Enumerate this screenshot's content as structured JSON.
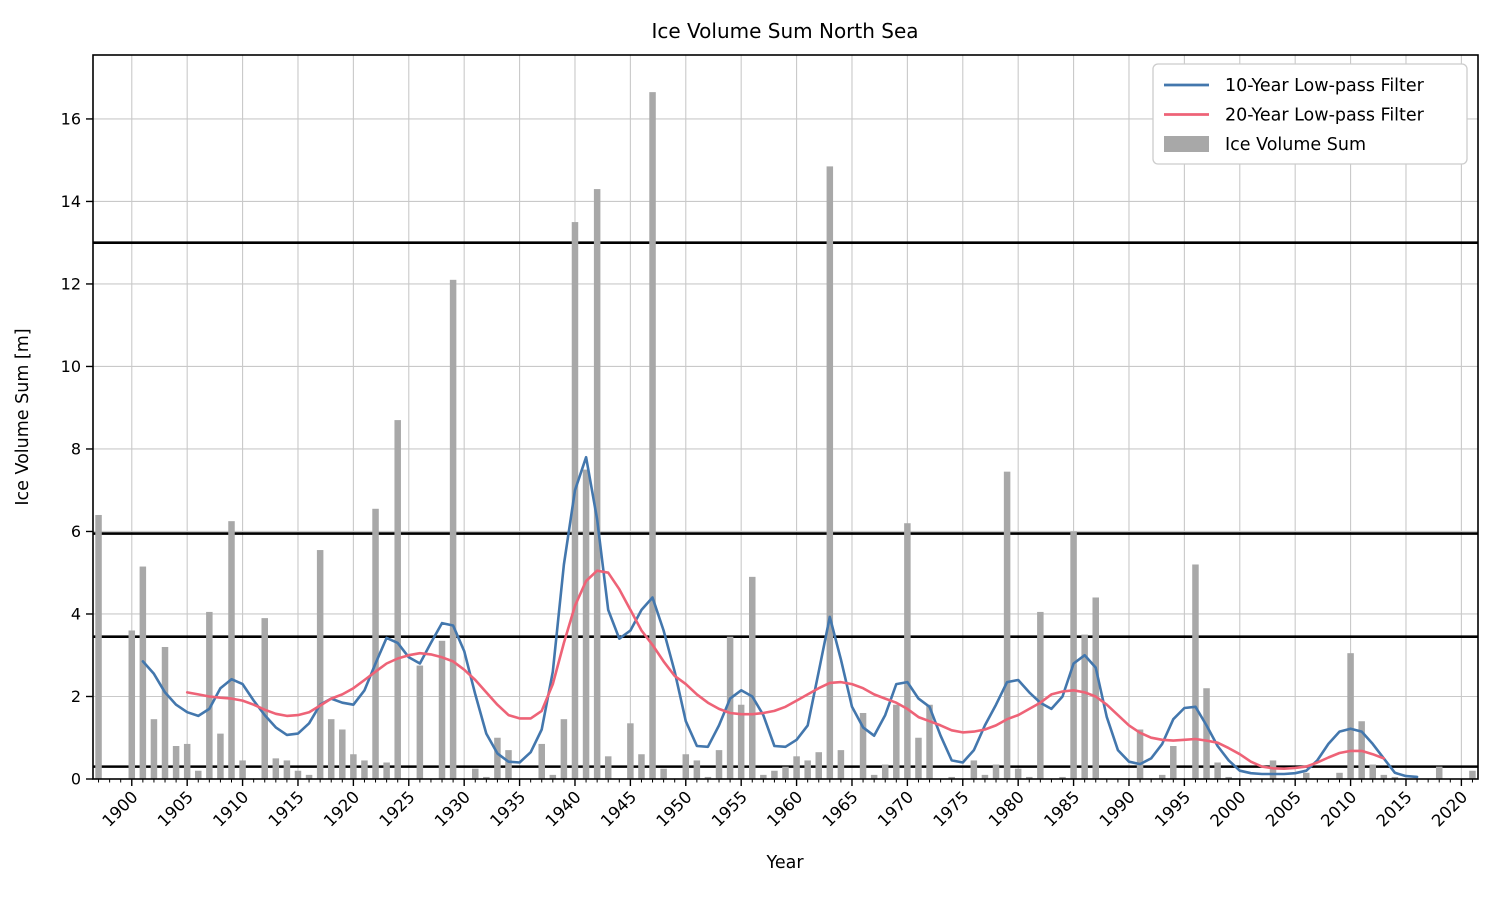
{
  "figure": {
    "title": "Ice Volume Sum North Sea",
    "xlabel": "Year",
    "ylabel": "Ice Volume Sum [m]"
  },
  "legend": {
    "position": "upper-right",
    "items": [
      {
        "label": "10-Year Low-pass Filter",
        "type": "line",
        "color": "#4377ad"
      },
      {
        "label": "20-Year Low-pass Filter",
        "type": "line",
        "color": "#ee6377"
      },
      {
        "label": "Ice Volume Sum",
        "type": "patch",
        "color": "#a8a8a8"
      }
    ]
  },
  "colors": {
    "bars": "#a8a8a8",
    "line_10yr": "#4377ad",
    "line_20yr": "#ee6377",
    "grid": "#c9c9c9",
    "threshold": "#000000",
    "spine": "#000000",
    "background": "#ffffff"
  },
  "chart_data": {
    "type": "bar",
    "title": "Ice Volume Sum North Sea",
    "xlabel": "Year",
    "ylabel": "Ice Volume Sum [m]",
    "xlim": [
      1896.5,
      2021.5
    ],
    "ylim": [
      0,
      17.55
    ],
    "xticks": [
      1900,
      1905,
      1910,
      1915,
      1920,
      1925,
      1930,
      1935,
      1940,
      1945,
      1950,
      1955,
      1960,
      1965,
      1970,
      1975,
      1980,
      1985,
      1990,
      1995,
      2000,
      2005,
      2010,
      2015,
      2020
    ],
    "yticks": [
      0,
      2,
      4,
      6,
      8,
      10,
      12,
      14,
      16
    ],
    "grid": true,
    "xtick_rotation": 45,
    "threshold_lines": [
      0.3,
      3.45,
      5.95,
      13.0
    ],
    "bars": {
      "name": "Ice Volume Sum",
      "start_year": 1897,
      "values": [
        6.4,
        0,
        0,
        3.6,
        5.15,
        1.45,
        3.2,
        0.8,
        0.85,
        0.2,
        4.05,
        1.1,
        6.25,
        0.45,
        0,
        3.9,
        0.5,
        0.45,
        0.2,
        0.1,
        5.55,
        1.45,
        1.2,
        0.6,
        0.45,
        6.55,
        0.4,
        8.7,
        0,
        2.75,
        0,
        3.35,
        12.1,
        0,
        0.25,
        0.05,
        1.0,
        0.7,
        0,
        0,
        0.85,
        0.1,
        1.45,
        13.5,
        7.5,
        14.3,
        0.55,
        0,
        1.35,
        0.6,
        16.65,
        0.25,
        0,
        0.6,
        0.45,
        0.05,
        0.7,
        3.45,
        1.8,
        4.9,
        0.1,
        0.2,
        0.3,
        0.55,
        0.45,
        0.65,
        14.85,
        0.7,
        0,
        1.6,
        0.1,
        0.35,
        1.8,
        6.2,
        1.0,
        1.8,
        0,
        0.05,
        0,
        0.45,
        0.1,
        0.35,
        7.45,
        0.25,
        0.05,
        4.05,
        0,
        0.05,
        6.0,
        3.5,
        4.4,
        0,
        0,
        0,
        1.2,
        0,
        0.1,
        0.8,
        0,
        5.2,
        2.2,
        0.4,
        0.05,
        0,
        0,
        0,
        0.45,
        0,
        0,
        0.15,
        0,
        0,
        0.15,
        3.05,
        1.4,
        0.35,
        0.1,
        0.05,
        0,
        0,
        0,
        0.3,
        0,
        0,
        0.2
      ]
    },
    "series": [
      {
        "name": "10-Year Low-pass Filter",
        "start_year": 1901,
        "values": [
          2.85,
          2.55,
          2.1,
          1.8,
          1.62,
          1.53,
          1.7,
          2.2,
          2.42,
          2.3,
          1.9,
          1.55,
          1.25,
          1.07,
          1.1,
          1.35,
          1.8,
          1.95,
          1.85,
          1.8,
          2.15,
          2.8,
          3.42,
          3.3,
          2.95,
          2.8,
          3.3,
          3.78,
          3.72,
          3.1,
          2.05,
          1.1,
          0.62,
          0.42,
          0.4,
          0.65,
          1.2,
          2.6,
          5.2,
          7.0,
          7.8,
          6.3,
          4.1,
          3.4,
          3.6,
          4.1,
          4.4,
          3.6,
          2.6,
          1.4,
          0.8,
          0.78,
          1.3,
          1.95,
          2.15,
          2.0,
          1.55,
          0.8,
          0.78,
          0.95,
          1.3,
          2.6,
          3.93,
          2.9,
          1.75,
          1.25,
          1.05,
          1.55,
          2.3,
          2.35,
          1.95,
          1.75,
          1.05,
          0.45,
          0.4,
          0.7,
          1.3,
          1.8,
          2.35,
          2.4,
          2.1,
          1.85,
          1.7,
          2.0,
          2.8,
          3.0,
          2.7,
          1.5,
          0.7,
          0.42,
          0.36,
          0.5,
          0.85,
          1.45,
          1.72,
          1.75,
          1.3,
          0.8,
          0.45,
          0.2,
          0.14,
          0.12,
          0.12,
          0.12,
          0.14,
          0.2,
          0.45,
          0.85,
          1.15,
          1.22,
          1.15,
          0.85,
          0.5,
          0.15,
          0.07,
          0.05
        ]
      },
      {
        "name": "20-Year Low-pass Filter",
        "start_year": 1905,
        "values": [
          2.1,
          2.05,
          2.0,
          1.97,
          1.95,
          1.9,
          1.8,
          1.68,
          1.58,
          1.53,
          1.55,
          1.62,
          1.78,
          1.95,
          2.05,
          2.2,
          2.4,
          2.6,
          2.8,
          2.92,
          3.0,
          3.05,
          3.02,
          2.95,
          2.85,
          2.65,
          2.4,
          2.1,
          1.8,
          1.55,
          1.47,
          1.47,
          1.65,
          2.3,
          3.3,
          4.2,
          4.8,
          5.05,
          5.0,
          4.6,
          4.1,
          3.6,
          3.25,
          2.85,
          2.5,
          2.3,
          2.05,
          1.85,
          1.7,
          1.6,
          1.57,
          1.57,
          1.6,
          1.65,
          1.75,
          1.9,
          2.05,
          2.2,
          2.33,
          2.35,
          2.3,
          2.2,
          2.05,
          1.95,
          1.85,
          1.7,
          1.5,
          1.4,
          1.3,
          1.18,
          1.13,
          1.15,
          1.2,
          1.3,
          1.45,
          1.55,
          1.7,
          1.85,
          2.05,
          2.12,
          2.15,
          2.1,
          2.0,
          1.8,
          1.55,
          1.3,
          1.12,
          1.0,
          0.95,
          0.93,
          0.95,
          0.97,
          0.93,
          0.88,
          0.75,
          0.6,
          0.42,
          0.3,
          0.26,
          0.25,
          0.27,
          0.3,
          0.4,
          0.52,
          0.63,
          0.68,
          0.68,
          0.6,
          0.5
        ]
      }
    ]
  }
}
